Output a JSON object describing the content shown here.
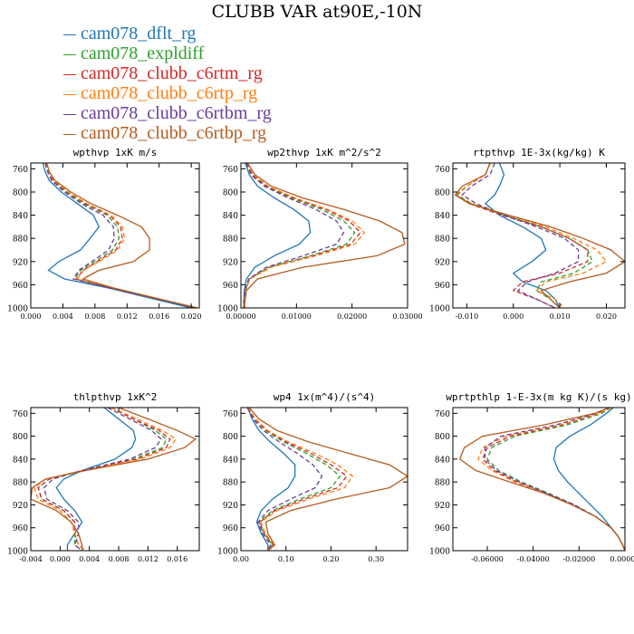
{
  "title": "CLUBB VAR at90E,-10N",
  "legend": [
    {
      "label": "cam078_dflt_rg",
      "color": "#1f77b4",
      "dash": "solid"
    },
    {
      "label": "cam078_expldiff",
      "color": "#2ca02c",
      "dash": "dashed"
    },
    {
      "label": "cam078_clubb_c6rtm_rg",
      "color": "#d62728",
      "dash": "dashed"
    },
    {
      "label": "cam078_clubb_c6rtp_rg",
      "color": "#ff7f0e",
      "dash": "dashed"
    },
    {
      "label": "cam078_clubb_c6rtbm_rg",
      "color": "#6a3d9a",
      "dash": "dashed"
    },
    {
      "label": "cam078_clubb_c6rtbp_rg",
      "color": "#b35c1e",
      "dash": "solid"
    }
  ],
  "chart_data": [
    {
      "type": "line",
      "title": "wpthvp  1xK m/s",
      "ylim": [
        1000,
        750
      ],
      "xlim": [
        0,
        0.021
      ],
      "xticks": [
        0,
        0.004,
        0.008,
        0.012,
        0.016,
        0.02
      ],
      "xticklabels": [
        "0.000",
        "0.004",
        "0.008",
        "0.012",
        "0.016",
        "0.020"
      ],
      "yticks": [
        760,
        800,
        840,
        880,
        920,
        960,
        1000
      ],
      "y": [
        750,
        765,
        780,
        800,
        820,
        840,
        860,
        880,
        900,
        920,
        935,
        950,
        965,
        980,
        1000
      ],
      "series": [
        {
          "values": [
            0.0015,
            0.0018,
            0.0023,
            0.0038,
            0.0058,
            0.0078,
            0.0085,
            0.0074,
            0.0062,
            0.0035,
            0.0022,
            0.0042,
            0.0095,
            0.014,
            0.02
          ]
        },
        {
          "values": [
            0.0018,
            0.0021,
            0.0027,
            0.0044,
            0.0066,
            0.0095,
            0.0108,
            0.011,
            0.0102,
            0.008,
            0.0062,
            0.0055,
            0.0098,
            0.0145,
            0.0205
          ]
        },
        {
          "values": [
            0.0019,
            0.0022,
            0.0028,
            0.0046,
            0.0068,
            0.0098,
            0.0112,
            0.0114,
            0.0106,
            0.0083,
            0.0065,
            0.0057,
            0.0099,
            0.0145,
            0.0206
          ]
        },
        {
          "values": [
            0.0019,
            0.0022,
            0.0029,
            0.0047,
            0.007,
            0.01,
            0.0114,
            0.0117,
            0.0108,
            0.0085,
            0.0066,
            0.0058,
            0.01,
            0.0146,
            0.0206
          ]
        },
        {
          "values": [
            0.0018,
            0.0021,
            0.0026,
            0.0042,
            0.0063,
            0.009,
            0.0103,
            0.0104,
            0.0097,
            0.0076,
            0.006,
            0.0053,
            0.0097,
            0.0144,
            0.0205
          ]
        },
        {
          "values": [
            0.002,
            0.0023,
            0.003,
            0.005,
            0.0075,
            0.0108,
            0.0138,
            0.0148,
            0.0148,
            0.0128,
            0.0085,
            0.0065,
            0.0102,
            0.0147,
            0.0208
          ]
        }
      ]
    },
    {
      "type": "line",
      "title": "wp2thvp  1xK m^2/s^2",
      "ylim": [
        1000,
        750
      ],
      "xlim": [
        0,
        0.03
      ],
      "xticks": [
        0,
        0.01,
        0.02,
        0.03
      ],
      "xticklabels": [
        "0.00000",
        "0.01000",
        "0.02000",
        "0.03000"
      ],
      "yticks": [
        760,
        800,
        840,
        880,
        920,
        960,
        1000
      ],
      "y": [
        750,
        770,
        790,
        810,
        830,
        850,
        870,
        890,
        910,
        930,
        950,
        970,
        990,
        1000
      ],
      "series": [
        {
          "values": [
            0.0008,
            0.0015,
            0.003,
            0.006,
            0.0095,
            0.0122,
            0.0125,
            0.0105,
            0.006,
            0.0025,
            0.001,
            0.0006,
            0.0005,
            0.0005
          ]
        },
        {
          "values": [
            0.001,
            0.002,
            0.0045,
            0.009,
            0.0145,
            0.0185,
            0.0205,
            0.019,
            0.0125,
            0.005,
            0.0015,
            0.0008,
            0.0006,
            0.0006
          ]
        },
        {
          "values": [
            0.001,
            0.0021,
            0.0047,
            0.0094,
            0.0152,
            0.0195,
            0.0215,
            0.0198,
            0.013,
            0.0052,
            0.0016,
            0.0008,
            0.0006,
            0.0006
          ]
        },
        {
          "values": [
            0.0011,
            0.0022,
            0.0049,
            0.0097,
            0.0156,
            0.0201,
            0.0222,
            0.0205,
            0.0135,
            0.0054,
            0.0016,
            0.0008,
            0.0006,
            0.0006
          ]
        },
        {
          "values": [
            0.001,
            0.0018,
            0.0042,
            0.0085,
            0.0135,
            0.0172,
            0.0185,
            0.0172,
            0.0112,
            0.0045,
            0.0014,
            0.0007,
            0.0005,
            0.0005
          ]
        },
        {
          "values": [
            0.0012,
            0.0025,
            0.0055,
            0.011,
            0.0185,
            0.025,
            0.029,
            0.0295,
            0.0245,
            0.011,
            0.003,
            0.001,
            0.0007,
            0.0007
          ]
        }
      ]
    },
    {
      "type": "line",
      "title": "rtpthvp  1E-3x(kg/kg) K",
      "ylim": [
        1000,
        750
      ],
      "xlim": [
        -0.013,
        0.024
      ],
      "xticks": [
        -0.01,
        0,
        0.01,
        0.02
      ],
      "xticklabels": [
        "-0.010",
        "0.000",
        "0.010",
        "0.020"
      ],
      "yticks": [
        760,
        800,
        840,
        880,
        920,
        960,
        1000
      ],
      "y": [
        750,
        770,
        790,
        805,
        820,
        840,
        860,
        880,
        900,
        920,
        940,
        955,
        970,
        985,
        1000
      ],
      "series": [
        {
          "values": [
            -0.003,
            -0.002,
            -0.003,
            -0.004,
            -0.006,
            -0.003,
            0.002,
            0.006,
            0.007,
            0.004,
            0.0,
            0.002,
            0.007,
            0.009,
            0.01
          ]
        },
        {
          "values": [
            -0.005,
            -0.006,
            -0.01,
            -0.012,
            -0.009,
            -0.002,
            0.006,
            0.012,
            0.016,
            0.017,
            0.013,
            0.006,
            0.005,
            0.008,
            0.01
          ]
        },
        {
          "values": [
            -0.005,
            -0.006,
            -0.01,
            -0.0125,
            -0.0095,
            -0.0025,
            0.006,
            0.012,
            0.016,
            0.016,
            0.01,
            0.002,
            0.0,
            0.005,
            0.009
          ]
        },
        {
          "values": [
            -0.005,
            -0.006,
            -0.01,
            -0.0125,
            -0.009,
            -0.0015,
            0.007,
            0.013,
            0.018,
            0.02,
            0.015,
            0.007,
            0.005,
            0.009,
            0.011
          ]
        },
        {
          "values": [
            -0.004,
            -0.005,
            -0.009,
            -0.011,
            -0.008,
            -0.002,
            0.005,
            0.011,
            0.014,
            0.014,
            0.009,
            0.003,
            0.001,
            0.005,
            0.009
          ]
        },
        {
          "values": [
            -0.005,
            -0.006,
            -0.011,
            -0.0125,
            -0.0095,
            -0.001,
            0.008,
            0.015,
            0.021,
            0.024,
            0.02,
            0.012,
            0.006,
            0.008,
            0.01
          ]
        }
      ]
    },
    {
      "type": "line",
      "title": "thlpthvp  1xK^2",
      "ylim": [
        1000,
        750
      ],
      "xlim": [
        -0.004,
        0.019
      ],
      "xticks": [
        -0.004,
        0,
        0.004,
        0.008,
        0.012,
        0.016
      ],
      "xticklabels": [
        "-0.004",
        "0.000",
        "0.004",
        "0.008",
        "0.012",
        "0.016"
      ],
      "yticks": [
        760,
        800,
        840,
        880,
        920,
        960,
        1000
      ],
      "y": [
        750,
        770,
        790,
        805,
        820,
        840,
        860,
        875,
        890,
        910,
        930,
        950,
        970,
        990,
        1000
      ],
      "series": [
        {
          "values": [
            0.006,
            0.008,
            0.01,
            0.0103,
            0.0098,
            0.0075,
            0.003,
            0.0005,
            -0.0005,
            0.0005,
            0.002,
            0.003,
            0.002,
            0.001,
            0.001
          ]
        },
        {
          "values": [
            0.007,
            0.01,
            0.013,
            0.0145,
            0.014,
            0.01,
            0.003,
            -0.0015,
            -0.003,
            -0.0025,
            0.0005,
            0.002,
            0.002,
            0.002,
            0.003
          ]
        },
        {
          "values": [
            0.007,
            0.01,
            0.0135,
            0.015,
            0.0145,
            0.0105,
            0.003,
            -0.0015,
            -0.003,
            -0.0025,
            0.0005,
            0.002,
            0.002,
            0.0025,
            0.0035
          ]
        },
        {
          "values": [
            0.007,
            0.0105,
            0.014,
            0.0158,
            0.015,
            0.011,
            0.003,
            -0.002,
            -0.0035,
            -0.003,
            0.0,
            0.0015,
            0.002,
            0.0025,
            0.0035
          ]
        },
        {
          "values": [
            0.0065,
            0.0095,
            0.0125,
            0.0138,
            0.013,
            0.0095,
            0.003,
            -0.001,
            -0.0022,
            -0.0018,
            0.001,
            0.0025,
            0.0025,
            0.002,
            0.003
          ]
        },
        {
          "values": [
            0.008,
            0.012,
            0.016,
            0.0185,
            0.017,
            0.012,
            0.0035,
            -0.002,
            -0.0038,
            -0.004,
            -0.0005,
            0.0015,
            0.0025,
            0.003,
            0.003
          ]
        }
      ]
    },
    {
      "type": "line",
      "title": "wp4  1x(m^4)/(s^4)",
      "ylim": [
        1000,
        750
      ],
      "xlim": [
        0,
        0.37
      ],
      "xticks": [
        0,
        0.1,
        0.2,
        0.3
      ],
      "xticklabels": [
        "0.00",
        "0.10",
        "0.20",
        "0.30"
      ],
      "yticks": [
        760,
        800,
        840,
        880,
        920,
        960,
        1000
      ],
      "y": [
        750,
        770,
        790,
        810,
        830,
        850,
        870,
        890,
        910,
        930,
        950,
        970,
        990,
        1000
      ],
      "series": [
        {
          "values": [
            0.015,
            0.025,
            0.04,
            0.065,
            0.095,
            0.12,
            0.12,
            0.105,
            0.07,
            0.045,
            0.035,
            0.045,
            0.06,
            0.06
          ]
        },
        {
          "values": [
            0.015,
            0.03,
            0.055,
            0.095,
            0.145,
            0.19,
            0.22,
            0.2,
            0.13,
            0.07,
            0.04,
            0.05,
            0.07,
            0.06
          ]
        },
        {
          "values": [
            0.015,
            0.03,
            0.058,
            0.1,
            0.155,
            0.2,
            0.235,
            0.215,
            0.14,
            0.075,
            0.042,
            0.052,
            0.072,
            0.06
          ]
        },
        {
          "values": [
            0.016,
            0.032,
            0.06,
            0.105,
            0.165,
            0.215,
            0.248,
            0.23,
            0.15,
            0.08,
            0.044,
            0.054,
            0.074,
            0.06
          ]
        },
        {
          "values": [
            0.014,
            0.027,
            0.05,
            0.085,
            0.125,
            0.16,
            0.18,
            0.165,
            0.11,
            0.06,
            0.038,
            0.048,
            0.066,
            0.058
          ]
        },
        {
          "values": [
            0.018,
            0.04,
            0.08,
            0.15,
            0.24,
            0.33,
            0.37,
            0.33,
            0.21,
            0.11,
            0.055,
            0.06,
            0.075,
            0.06
          ]
        }
      ]
    },
    {
      "type": "line",
      "title": "wprtpthlp  1-E-3x(m kg K)/(s kg)",
      "ylim": [
        1000,
        750
      ],
      "xlim": [
        -0.075,
        0
      ],
      "xticks": [
        -0.06,
        -0.04,
        -0.02,
        0
      ],
      "xticklabels": [
        "-0.06000",
        "-0.04000",
        "-0.02000",
        "0.00000"
      ],
      "yticks": [
        760,
        800,
        840,
        880,
        920,
        960,
        1000
      ],
      "y": [
        750,
        760,
        780,
        800,
        820,
        840,
        860,
        880,
        900,
        920,
        940,
        960,
        975,
        990,
        1000
      ],
      "series": [
        {
          "values": [
            -0.005,
            -0.008,
            -0.015,
            -0.024,
            -0.03,
            -0.031,
            -0.029,
            -0.025,
            -0.02,
            -0.015,
            -0.01,
            -0.006,
            -0.003,
            -0.001,
            0.0
          ]
        },
        {
          "values": [
            -0.006,
            -0.01,
            -0.025,
            -0.048,
            -0.058,
            -0.06,
            -0.055,
            -0.045,
            -0.033,
            -0.022,
            -0.013,
            -0.006,
            -0.003,
            -0.001,
            0.0
          ]
        },
        {
          "values": [
            -0.006,
            -0.011,
            -0.027,
            -0.05,
            -0.06,
            -0.062,
            -0.057,
            -0.047,
            -0.034,
            -0.023,
            -0.013,
            -0.006,
            -0.003,
            -0.001,
            0.0
          ]
        },
        {
          "values": [
            -0.006,
            -0.011,
            -0.028,
            -0.052,
            -0.062,
            -0.064,
            -0.058,
            -0.048,
            -0.035,
            -0.023,
            -0.013,
            -0.006,
            -0.003,
            -0.001,
            0.0
          ]
        },
        {
          "values": [
            -0.007,
            -0.012,
            -0.03,
            -0.054,
            -0.061,
            -0.061,
            -0.056,
            -0.046,
            -0.034,
            -0.022,
            -0.013,
            -0.006,
            -0.003,
            -0.001,
            0.0
          ]
        },
        {
          "values": [
            -0.007,
            -0.013,
            -0.035,
            -0.062,
            -0.07,
            -0.072,
            -0.065,
            -0.05,
            -0.035,
            -0.023,
            -0.013,
            -0.006,
            -0.003,
            -0.001,
            0.0
          ]
        }
      ]
    }
  ]
}
